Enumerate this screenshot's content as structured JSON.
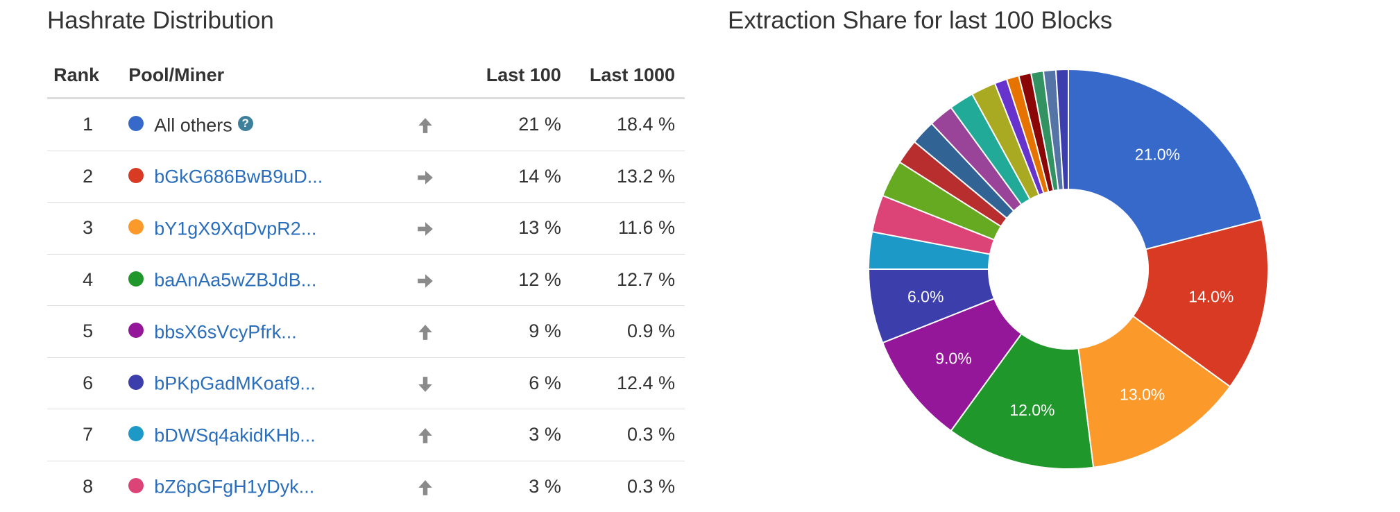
{
  "left_title": "Hashrate Distribution",
  "right_title": "Extraction Share for last 100 Blocks",
  "table": {
    "headers": {
      "rank": "Rank",
      "pool": "Pool/Miner",
      "last100": "Last 100",
      "last1000": "Last 1000"
    },
    "rows": [
      {
        "rank": "1",
        "name": "All others",
        "link": false,
        "help": true,
        "color": "#3669c9",
        "trend": "up",
        "last100": "21 %",
        "last1000": "18.4 %"
      },
      {
        "rank": "2",
        "name": "bGkG686BwB9uD...",
        "link": true,
        "help": false,
        "color": "#d83a23",
        "trend": "right",
        "last100": "14 %",
        "last1000": "13.2 %"
      },
      {
        "rank": "3",
        "name": "bY1gX9XqDvpR2...",
        "link": true,
        "help": false,
        "color": "#fb9a2b",
        "trend": "right",
        "last100": "13 %",
        "last1000": "11.6 %"
      },
      {
        "rank": "4",
        "name": "baAnAa5wZBJdB...",
        "link": true,
        "help": false,
        "color": "#1f972a",
        "trend": "right",
        "last100": "12 %",
        "last1000": "12.7 %"
      },
      {
        "rank": "5",
        "name": "bbsX6sVcyPfrk...",
        "link": true,
        "help": false,
        "color": "#94179a",
        "trend": "up",
        "last100": "9 %",
        "last1000": "0.9 %"
      },
      {
        "rank": "6",
        "name": "bPKpGadMKoaf9...",
        "link": true,
        "help": false,
        "color": "#3b3eab",
        "trend": "down",
        "last100": "6 %",
        "last1000": "12.4 %"
      },
      {
        "rank": "7",
        "name": "bDWSq4akidKHb...",
        "link": true,
        "help": false,
        "color": "#1d99c8",
        "trend": "up",
        "last100": "3 %",
        "last1000": "0.3 %"
      },
      {
        "rank": "8",
        "name": "bZ6pGFgH1yDyk...",
        "link": true,
        "help": false,
        "color": "#dc4477",
        "trend": "up",
        "last100": "3 %",
        "last1000": "0.3 %"
      }
    ]
  },
  "icons": {
    "up": "arrow-up-icon",
    "right": "arrow-right-icon",
    "down": "arrow-down-icon",
    "help": "question-circle-icon"
  },
  "chart_data": {
    "type": "pie",
    "title": "Extraction Share for last 100 Blocks",
    "donut": true,
    "slices": [
      {
        "value": 21,
        "color": "#3669c9",
        "label": "21.0%"
      },
      {
        "value": 14,
        "color": "#d83a23",
        "label": "14.0%"
      },
      {
        "value": 13,
        "color": "#fb9a2b",
        "label": "13.0%"
      },
      {
        "value": 12,
        "color": "#1f972a",
        "label": "12.0%"
      },
      {
        "value": 9,
        "color": "#94179a",
        "label": "9.0%"
      },
      {
        "value": 6,
        "color": "#3b3eab",
        "label": "6.0%"
      },
      {
        "value": 3,
        "color": "#1d99c8",
        "label": ""
      },
      {
        "value": 3,
        "color": "#dc4477",
        "label": ""
      },
      {
        "value": 3,
        "color": "#66aa22",
        "label": ""
      },
      {
        "value": 2,
        "color": "#b82e2e",
        "label": ""
      },
      {
        "value": 2,
        "color": "#316395",
        "label": ""
      },
      {
        "value": 2,
        "color": "#994499",
        "label": ""
      },
      {
        "value": 2,
        "color": "#22aa99",
        "label": ""
      },
      {
        "value": 2,
        "color": "#aaaa22",
        "label": ""
      },
      {
        "value": 1,
        "color": "#6633cc",
        "label": ""
      },
      {
        "value": 1,
        "color": "#e67300",
        "label": ""
      },
      {
        "value": 1,
        "color": "#8b0707",
        "label": ""
      },
      {
        "value": 1,
        "color": "#329262",
        "label": ""
      },
      {
        "value": 1,
        "color": "#5574a6",
        "label": ""
      },
      {
        "value": 1,
        "color": "#3b3eac",
        "label": ""
      }
    ]
  }
}
